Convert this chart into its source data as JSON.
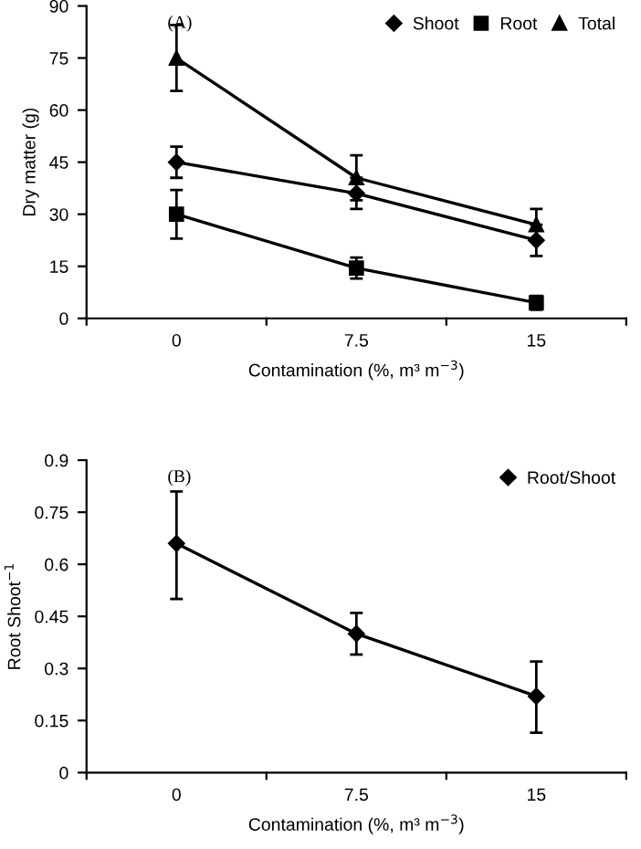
{
  "chart_data": [
    {
      "type": "line",
      "categories": [
        "0",
        "7.5",
        "15"
      ],
      "xlabel": "Contamination (%, m³ m$^{−3}$)",
      "ylabel": "Dry matter (g)",
      "ylim": [
        0,
        90
      ],
      "yticks": [
        0,
        15,
        30,
        45,
        60,
        75,
        90
      ],
      "legend": "top right",
      "grid": false,
      "annotations": [
        "(A)"
      ],
      "series": [
        {
          "name": "Shoot",
          "color": "#000000",
          "marker": "diamond",
          "values": [
            45,
            36,
            22.5
          ],
          "errors": [
            4.5,
            4.5,
            4.5
          ]
        },
        {
          "name": "Root",
          "color": "#000000",
          "marker": "square",
          "values": [
            30,
            14.5,
            4.5
          ],
          "errors": [
            7,
            3,
            2
          ]
        },
        {
          "name": "Total",
          "color": "#000000",
          "marker": "triangle",
          "values": [
            75,
            40.5,
            27
          ],
          "errors": [
            9.5,
            6.5,
            4.5
          ]
        }
      ]
    },
    {
      "type": "line",
      "categories": [
        "0",
        "7.5",
        "15"
      ],
      "xlabel": "Contamination (%, m³ m$^{−3}$)",
      "ylabel": "Root Shoot$^{−1}$",
      "ylim": [
        0,
        0.9
      ],
      "yticks": [
        0,
        0.15,
        0.3,
        0.45,
        0.6,
        0.75,
        0.9
      ],
      "legend": "top right",
      "grid": false,
      "annotations": [
        "(B)"
      ],
      "series": [
        {
          "name": "Root/Shoot",
          "color": "#000000",
          "marker": "diamond",
          "values": [
            0.66,
            0.4,
            0.22
          ],
          "errors": [
            [
              0.5,
              0.81
            ],
            [
              0.34,
              0.46
            ],
            [
              0.115,
              0.32
            ]
          ]
        }
      ]
    }
  ]
}
